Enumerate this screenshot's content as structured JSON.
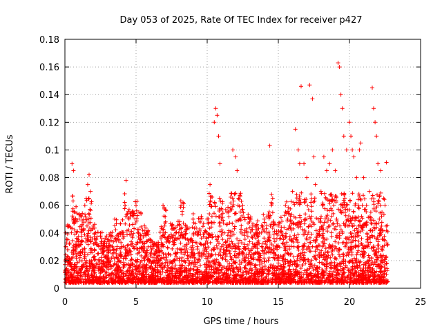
{
  "chart_data": {
    "type": "scatter",
    "title": "Day 053 of 2025, Rate Of TEC Index for receiver p427",
    "xlabel": "GPS time / hours",
    "ylabel": "ROTI / TECUs",
    "xlim": [
      0,
      25
    ],
    "ylim": [
      0,
      0.18
    ],
    "xticks": [
      "0",
      "5",
      "10",
      "15",
      "20",
      "25"
    ],
    "yticks": [
      "0",
      "0.02",
      "0.04",
      "0.06",
      "0.08",
      "0.1",
      "0.12",
      "0.14",
      "0.16",
      "0.18"
    ],
    "grid": true,
    "marker": "+",
    "marker_color": "#ff0000",
    "series": [
      {
        "name": "ROTI",
        "x": [
          0.05,
          0.3,
          0.5,
          0.6,
          0.7,
          1.0,
          1.4,
          1.6,
          1.7,
          1.8,
          2.0,
          2.5,
          3.0,
          3.5,
          4.0,
          4.3,
          4.5,
          4.8,
          5.0,
          5.2,
          5.5,
          6.0,
          6.5,
          6.9,
          7.0,
          7.5,
          8.0,
          8.3,
          8.5,
          9.0,
          9.5,
          10.0,
          10.2,
          10.5,
          10.6,
          10.7,
          10.8,
          10.9,
          11.0,
          11.5,
          11.8,
          12.0,
          12.1,
          12.2,
          12.5,
          13.0,
          13.5,
          14.0,
          14.4,
          14.6,
          15.0,
          15.5,
          16.0,
          16.2,
          16.4,
          16.5,
          16.6,
          16.8,
          17.0,
          17.2,
          17.4,
          17.5,
          17.6,
          18.0,
          18.2,
          18.4,
          18.6,
          18.8,
          19.0,
          19.2,
          19.3,
          19.4,
          19.5,
          19.6,
          19.8,
          20.0,
          20.1,
          20.2,
          20.3,
          20.5,
          20.7,
          20.8,
          21.0,
          21.2,
          21.4,
          21.6,
          21.7,
          21.8,
          21.9,
          22.0,
          22.2,
          22.4,
          22.5,
          22.6,
          0.2,
          0.8,
          1.2,
          2.2,
          2.8,
          3.2,
          3.8,
          5.8,
          6.2,
          7.2,
          7.8,
          8.8,
          9.2,
          9.8,
          11.2,
          12.8,
          13.2,
          13.8,
          14.2,
          15.2,
          15.8,
          16.9,
          17.8,
          18.5,
          19.1,
          20.4,
          20.9,
          21.5,
          22.1,
          0.4,
          1.1,
          1.5,
          2.3,
          3.1,
          3.6,
          4.6,
          5.1,
          5.6,
          6.3,
          6.7,
          7.3,
          7.7,
          8.2,
          8.7,
          9.1,
          9.6,
          10.1,
          10.4,
          11.3,
          11.6,
          12.3,
          12.7,
          13.3,
          13.7,
          14.3,
          14.7,
          15.3,
          15.7,
          16.1,
          16.7,
          17.1,
          17.7,
          18.1,
          18.7,
          19.7,
          20.6,
          21.1,
          21.3,
          22.3
        ],
        "y": [
          0.04,
          0.045,
          0.09,
          0.085,
          0.055,
          0.05,
          0.06,
          0.075,
          0.082,
          0.07,
          0.045,
          0.04,
          0.035,
          0.05,
          0.03,
          0.078,
          0.05,
          0.055,
          0.06,
          0.055,
          0.03,
          0.03,
          0.03,
          0.06,
          0.045,
          0.045,
          0.04,
          0.062,
          0.045,
          0.05,
          0.05,
          0.05,
          0.075,
          0.12,
          0.13,
          0.125,
          0.11,
          0.09,
          0.05,
          0.055,
          0.1,
          0.095,
          0.085,
          0.065,
          0.06,
          0.05,
          0.045,
          0.05,
          0.103,
          0.065,
          0.045,
          0.06,
          0.07,
          0.115,
          0.1,
          0.09,
          0.146,
          0.09,
          0.08,
          0.147,
          0.137,
          0.095,
          0.075,
          0.07,
          0.095,
          0.085,
          0.09,
          0.1,
          0.085,
          0.163,
          0.16,
          0.14,
          0.13,
          0.11,
          0.1,
          0.12,
          0.11,
          0.1,
          0.095,
          0.08,
          0.1,
          0.105,
          0.08,
          0.06,
          0.07,
          0.145,
          0.13,
          0.12,
          0.11,
          0.09,
          0.085,
          0.065,
          0.06,
          0.091,
          0.035,
          0.04,
          0.045,
          0.035,
          0.03,
          0.04,
          0.035,
          0.04,
          0.03,
          0.035,
          0.04,
          0.035,
          0.04,
          0.04,
          0.04,
          0.04,
          0.045,
          0.04,
          0.04,
          0.04,
          0.045,
          0.05,
          0.05,
          0.05,
          0.05,
          0.06,
          0.06,
          0.055,
          0.05,
          0.02,
          0.025,
          0.02,
          0.025,
          0.02,
          0.025,
          0.02,
          0.025,
          0.02,
          0.02,
          0.02,
          0.025,
          0.02,
          0.02,
          0.02,
          0.025,
          0.025,
          0.025,
          0.02,
          0.025,
          0.025,
          0.025,
          0.02,
          0.025,
          0.025,
          0.02,
          0.025,
          0.02,
          0.025,
          0.03,
          0.03,
          0.03,
          0.03,
          0.03,
          0.03,
          0.03,
          0.03,
          0.03,
          0.03,
          0.03
        ]
      }
    ]
  }
}
